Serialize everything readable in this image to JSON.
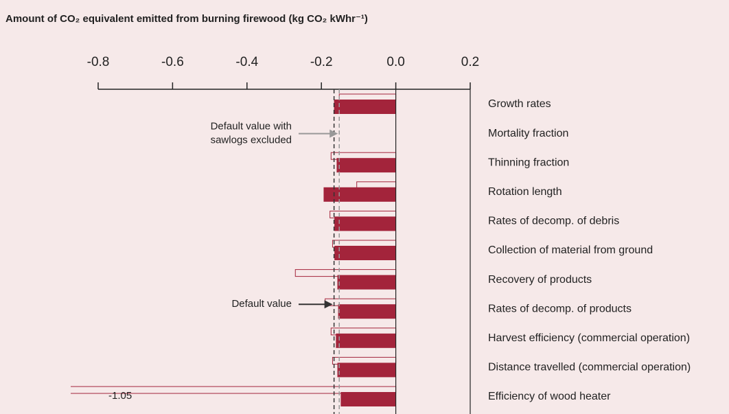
{
  "chart_data": {
    "type": "bar",
    "orientation": "horizontal",
    "title": "Amount of CO₂ equivalent emitted from burning firewood (kg CO₂ kWhr⁻¹)",
    "categories": [
      "Growth rates",
      "Mortality fraction",
      "Thinning fraction",
      "Rotation length",
      "Rates of decomp. of debris",
      "Collection of material from ground",
      "Recovery of products",
      "Rates of decomp. of products",
      "Harvest efficiency (commercial operation)",
      "Distance travelled (commercial operation)",
      "Efficiency of wood heater"
    ],
    "series": [
      {
        "color": "#a3243b",
        "style": "outline",
        "values": [
          -0.152,
          null,
          -0.174,
          -0.105,
          -0.177,
          -0.17,
          -0.27,
          -0.19,
          -0.174,
          -0.17,
          -1.05
        ],
        "value_labels": [
          null,
          null,
          null,
          null,
          null,
          null,
          null,
          null,
          null,
          null,
          "-1.05"
        ]
      },
      {
        "color": "#a3243b",
        "style": "filled",
        "values": [
          -0.166,
          null,
          -0.159,
          -0.194,
          -0.165,
          -0.165,
          -0.157,
          -0.155,
          -0.161,
          -0.157,
          -0.148
        ]
      }
    ],
    "xlim": [
      -0.8,
      0.2
    ],
    "xticks": [
      -0.8,
      -0.6,
      -0.4,
      -0.2,
      {
        "value": 0,
        "label": "0.0"
      },
      0.2
    ],
    "reference_lines": [
      {
        "value": -0.166,
        "color": "#333333",
        "text": [
          "Default value"
        ],
        "row": 7
      },
      {
        "value": -0.152,
        "color": "#999999",
        "text": [
          "Default value with",
          "sawlogs excluded"
        ],
        "row": 1
      }
    ]
  }
}
